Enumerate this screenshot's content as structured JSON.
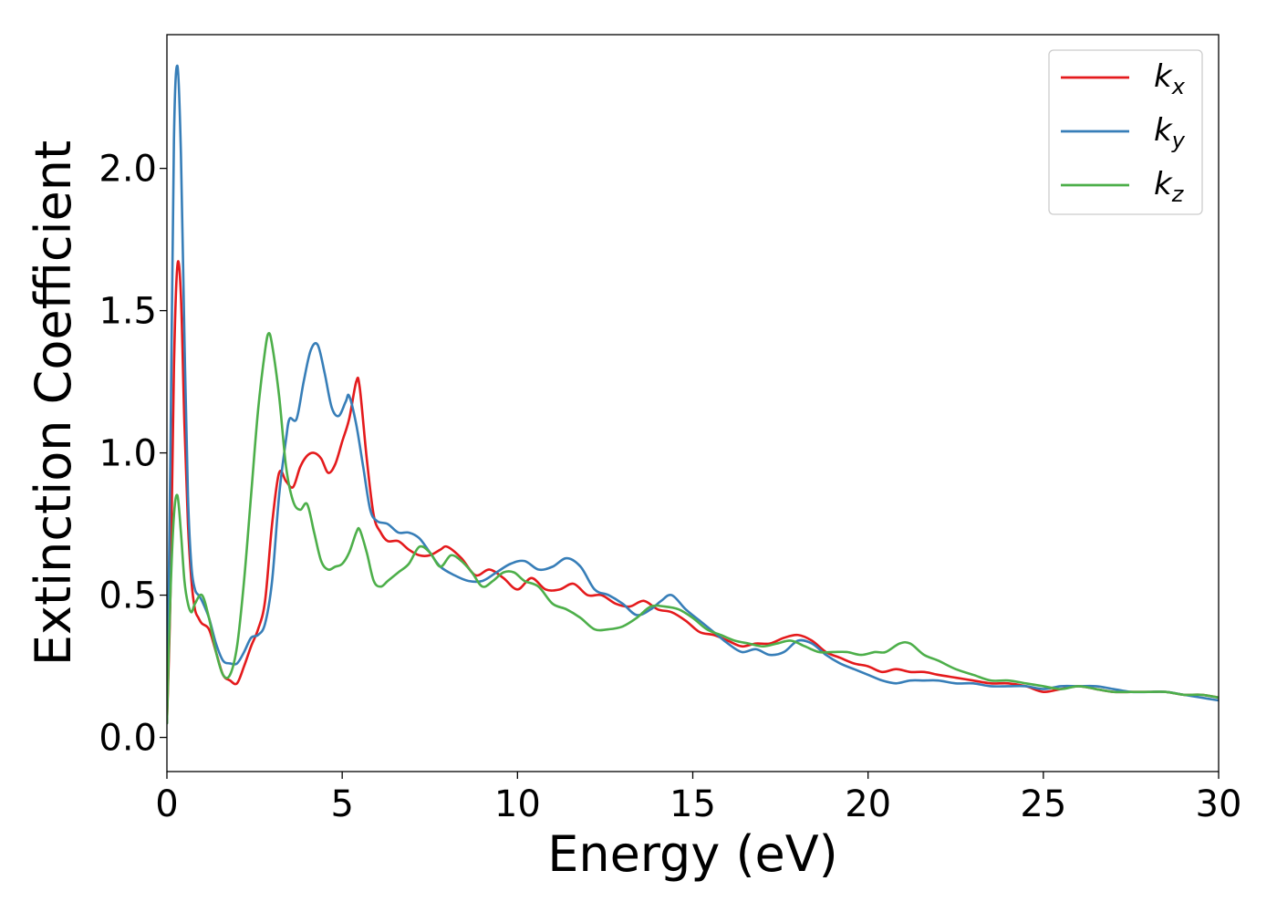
{
  "chart_data": {
    "type": "line",
    "xlabel": "Energy (eV)",
    "ylabel": "Extinction Coefficient",
    "xlim": [
      0,
      30
    ],
    "ylim": [
      -0.12,
      2.47
    ],
    "xticks": [
      0,
      5,
      10,
      15,
      20,
      25,
      30
    ],
    "xtick_labels": [
      "0",
      "5",
      "10",
      "15",
      "20",
      "25",
      "30"
    ],
    "yticks": [
      0.0,
      0.5,
      1.0,
      1.5,
      2.0
    ],
    "ytick_labels": [
      "0.0",
      "0.5",
      "1.0",
      "1.5",
      "2.0"
    ],
    "grid": false,
    "legend_position": "top-right",
    "series": [
      {
        "name": "k",
        "subscript": "x",
        "color": "#e41a1c",
        "x": [
          0,
          0.1,
          0.2,
          0.3,
          0.4,
          0.5,
          0.6,
          0.7,
          0.8,
          0.9,
          1.0,
          1.2,
          1.4,
          1.6,
          1.8,
          2.0,
          2.2,
          2.4,
          2.6,
          2.8,
          3.0,
          3.2,
          3.4,
          3.6,
          3.8,
          4.0,
          4.2,
          4.4,
          4.6,
          4.8,
          5.0,
          5.2,
          5.4,
          5.5,
          5.7,
          5.9,
          6.1,
          6.3,
          6.6,
          6.9,
          7.2,
          7.5,
          7.8,
          8.0,
          8.4,
          8.8,
          9.2,
          9.6,
          10.0,
          10.4,
          10.8,
          11.2,
          11.6,
          12.0,
          12.4,
          12.8,
          13.2,
          13.6,
          14.0,
          14.4,
          14.8,
          15.2,
          15.6,
          16.0,
          16.4,
          16.8,
          17.2,
          17.6,
          18.0,
          18.4,
          18.8,
          19.2,
          19.6,
          20.0,
          20.4,
          20.8,
          21.2,
          21.6,
          22.0,
          22.5,
          23.0,
          23.5,
          24.0,
          24.5,
          25.0,
          25.5,
          26.0,
          26.5,
          27.0,
          27.5,
          28.0,
          28.5,
          29.0,
          29.5,
          30.0
        ],
        "y": [
          0.05,
          0.5,
          1.3,
          1.66,
          1.55,
          1.1,
          0.75,
          0.55,
          0.45,
          0.42,
          0.4,
          0.38,
          0.3,
          0.22,
          0.2,
          0.19,
          0.25,
          0.32,
          0.38,
          0.48,
          0.75,
          0.93,
          0.9,
          0.88,
          0.95,
          0.99,
          1.0,
          0.98,
          0.93,
          0.96,
          1.04,
          1.12,
          1.25,
          1.23,
          0.98,
          0.78,
          0.72,
          0.69,
          0.69,
          0.66,
          0.64,
          0.64,
          0.66,
          0.67,
          0.63,
          0.57,
          0.59,
          0.56,
          0.52,
          0.56,
          0.52,
          0.52,
          0.54,
          0.5,
          0.5,
          0.47,
          0.46,
          0.48,
          0.45,
          0.44,
          0.41,
          0.37,
          0.36,
          0.34,
          0.32,
          0.33,
          0.33,
          0.35,
          0.36,
          0.34,
          0.3,
          0.28,
          0.26,
          0.25,
          0.23,
          0.24,
          0.23,
          0.23,
          0.22,
          0.21,
          0.2,
          0.19,
          0.19,
          0.18,
          0.16,
          0.17,
          0.18,
          0.17,
          0.16,
          0.16,
          0.16,
          0.16,
          0.15,
          0.15,
          0.14
        ]
      },
      {
        "name": "k",
        "subscript": "y",
        "color": "#377eb8",
        "x": [
          0,
          0.1,
          0.2,
          0.3,
          0.4,
          0.5,
          0.6,
          0.7,
          0.8,
          0.9,
          1.0,
          1.2,
          1.4,
          1.6,
          1.8,
          2.0,
          2.2,
          2.4,
          2.6,
          2.8,
          3.0,
          3.2,
          3.4,
          3.5,
          3.7,
          3.9,
          4.1,
          4.3,
          4.5,
          4.7,
          4.9,
          5.1,
          5.2,
          5.4,
          5.6,
          5.8,
          6.0,
          6.3,
          6.6,
          6.9,
          7.2,
          7.5,
          7.8,
          8.2,
          8.6,
          9.0,
          9.4,
          9.8,
          10.2,
          10.6,
          11.0,
          11.4,
          11.8,
          12.2,
          12.6,
          13.0,
          13.4,
          13.8,
          14.1,
          14.4,
          14.8,
          15.2,
          15.6,
          16.0,
          16.4,
          16.8,
          17.2,
          17.6,
          18.0,
          18.4,
          18.8,
          19.2,
          19.6,
          20.0,
          20.4,
          20.8,
          21.2,
          21.6,
          22.0,
          22.5,
          23.0,
          23.5,
          24.0,
          24.5,
          25.0,
          25.5,
          26.0,
          26.5,
          27.0,
          27.5,
          28.0,
          28.5,
          29.0,
          29.5,
          30.0
        ],
        "y": [
          0.05,
          1.0,
          2.1,
          2.36,
          2.05,
          1.4,
          0.85,
          0.6,
          0.52,
          0.5,
          0.48,
          0.42,
          0.33,
          0.27,
          0.26,
          0.26,
          0.3,
          0.35,
          0.36,
          0.4,
          0.55,
          0.85,
          1.05,
          1.12,
          1.12,
          1.25,
          1.36,
          1.38,
          1.28,
          1.16,
          1.13,
          1.18,
          1.2,
          1.1,
          0.95,
          0.8,
          0.76,
          0.75,
          0.72,
          0.72,
          0.7,
          0.65,
          0.6,
          0.57,
          0.55,
          0.55,
          0.58,
          0.61,
          0.62,
          0.59,
          0.6,
          0.63,
          0.6,
          0.52,
          0.5,
          0.47,
          0.43,
          0.45,
          0.48,
          0.5,
          0.45,
          0.41,
          0.37,
          0.33,
          0.3,
          0.31,
          0.29,
          0.3,
          0.34,
          0.33,
          0.29,
          0.26,
          0.24,
          0.22,
          0.2,
          0.19,
          0.2,
          0.2,
          0.2,
          0.19,
          0.19,
          0.18,
          0.18,
          0.18,
          0.17,
          0.18,
          0.18,
          0.18,
          0.17,
          0.16,
          0.16,
          0.16,
          0.15,
          0.14,
          0.13
        ]
      },
      {
        "name": "k",
        "subscript": "z",
        "color": "#4daf4a",
        "x": [
          0,
          0.1,
          0.2,
          0.3,
          0.4,
          0.5,
          0.6,
          0.7,
          0.8,
          1.0,
          1.2,
          1.4,
          1.6,
          1.8,
          2.0,
          2.2,
          2.4,
          2.6,
          2.8,
          2.9,
          3.0,
          3.2,
          3.4,
          3.6,
          3.8,
          4.0,
          4.2,
          4.4,
          4.6,
          4.8,
          5.0,
          5.2,
          5.4,
          5.5,
          5.7,
          5.9,
          6.1,
          6.3,
          6.6,
          6.9,
          7.2,
          7.5,
          7.8,
          8.1,
          8.4,
          8.7,
          9.0,
          9.3,
          9.6,
          9.9,
          10.2,
          10.6,
          11.0,
          11.4,
          11.8,
          12.2,
          12.6,
          13.0,
          13.4,
          13.8,
          14.2,
          14.6,
          15.0,
          15.4,
          15.8,
          16.2,
          16.6,
          17.0,
          17.4,
          17.8,
          18.2,
          18.6,
          19.0,
          19.4,
          19.8,
          20.2,
          20.5,
          20.9,
          21.2,
          21.6,
          22.0,
          22.5,
          23.0,
          23.5,
          24.0,
          24.5,
          25.0,
          25.5,
          26.0,
          26.5,
          27.0,
          27.5,
          28.0,
          28.5,
          29.0,
          29.5,
          30.0
        ],
        "y": [
          0.05,
          0.5,
          0.78,
          0.85,
          0.72,
          0.55,
          0.47,
          0.44,
          0.47,
          0.5,
          0.42,
          0.3,
          0.22,
          0.22,
          0.32,
          0.55,
          0.85,
          1.15,
          1.36,
          1.42,
          1.38,
          1.2,
          0.95,
          0.83,
          0.8,
          0.82,
          0.72,
          0.62,
          0.59,
          0.6,
          0.61,
          0.65,
          0.72,
          0.73,
          0.65,
          0.55,
          0.53,
          0.55,
          0.58,
          0.61,
          0.67,
          0.65,
          0.6,
          0.64,
          0.62,
          0.58,
          0.53,
          0.55,
          0.58,
          0.58,
          0.55,
          0.53,
          0.47,
          0.45,
          0.42,
          0.38,
          0.38,
          0.39,
          0.42,
          0.46,
          0.46,
          0.45,
          0.42,
          0.38,
          0.36,
          0.34,
          0.33,
          0.32,
          0.33,
          0.34,
          0.32,
          0.3,
          0.3,
          0.3,
          0.29,
          0.3,
          0.3,
          0.33,
          0.33,
          0.29,
          0.27,
          0.24,
          0.22,
          0.2,
          0.2,
          0.19,
          0.18,
          0.17,
          0.18,
          0.17,
          0.16,
          0.16,
          0.16,
          0.16,
          0.15,
          0.15,
          0.14
        ]
      }
    ]
  }
}
